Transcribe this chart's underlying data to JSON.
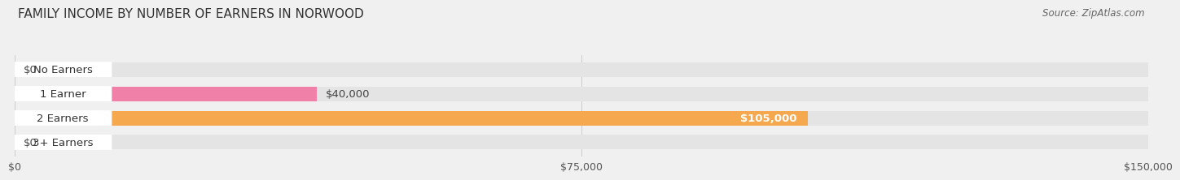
{
  "title": "FAMILY INCOME BY NUMBER OF EARNERS IN NORWOOD",
  "source": "Source: ZipAtlas.com",
  "categories": [
    "No Earners",
    "1 Earner",
    "2 Earners",
    "3+ Earners"
  ],
  "values": [
    0,
    40000,
    105000,
    0
  ],
  "bar_colors": [
    "#a8a8d8",
    "#f080a8",
    "#f5a84e",
    "#f4a8a8"
  ],
  "label_bg_colors": [
    "#a8a8d8",
    "#f080a8",
    "#f5a84e",
    "#f4a8a8"
  ],
  "value_labels": [
    "$0",
    "$40,000",
    "$105,000",
    "$0"
  ],
  "value_label_inside": [
    false,
    false,
    true,
    false
  ],
  "xlim": [
    0,
    150000
  ],
  "xticks": [
    0,
    75000,
    150000
  ],
  "xtick_labels": [
    "$0",
    "$75,000",
    "$150,000"
  ],
  "background_color": "#f0f0f0",
  "bar_bg_color": "#e4e4e4",
  "bar_height": 0.6,
  "title_fontsize": 11,
  "label_fontsize": 9.5,
  "tick_fontsize": 9
}
